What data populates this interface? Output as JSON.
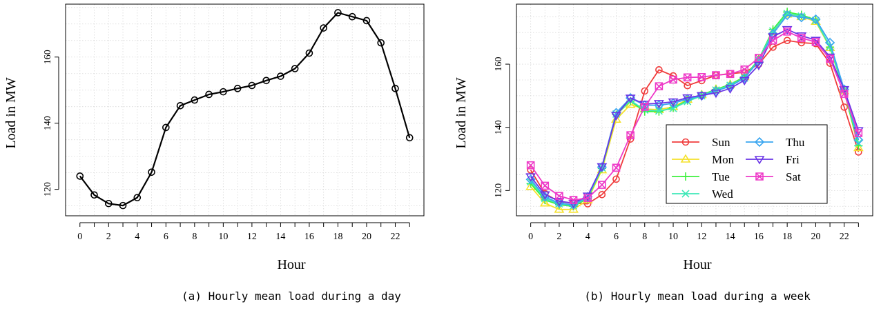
{
  "chart_data": [
    {
      "type": "line",
      "xlabel": "Hour",
      "ylabel": "Load in MW",
      "caption": "(a) Hourly mean load during a day",
      "xlim": [
        -1,
        24
      ],
      "ylim": [
        112,
        176
      ],
      "x_ticks": [
        0,
        2,
        4,
        6,
        8,
        10,
        12,
        14,
        16,
        18,
        20,
        22
      ],
      "y_ticks": [
        120,
        140,
        160
      ],
      "grid": true,
      "x": [
        0,
        1,
        2,
        3,
        4,
        5,
        6,
        7,
        8,
        9,
        10,
        11,
        12,
        13,
        14,
        15,
        16,
        17,
        18,
        19,
        20,
        21,
        22,
        23
      ],
      "series": [
        {
          "values": [
            124,
            118.3,
            115.7,
            115.1,
            117.5,
            125.2,
            138.7,
            145.3,
            147,
            148.7,
            149.5,
            150.5,
            151.4,
            152.9,
            154.2,
            156.5,
            161.2,
            168.8,
            173.4,
            172.2,
            171,
            164.3,
            150.5,
            135.6
          ],
          "color": "#000000",
          "marker": "circle"
        }
      ]
    },
    {
      "type": "line",
      "xlabel": "Hour",
      "ylabel": "Load in MW",
      "caption": "(b) Hourly mean load during a week",
      "xlim": [
        -1,
        24
      ],
      "ylim": [
        112,
        179
      ],
      "x_ticks": [
        0,
        2,
        4,
        6,
        8,
        10,
        12,
        14,
        16,
        18,
        20,
        22
      ],
      "y_ticks": [
        120,
        140,
        160
      ],
      "grid": true,
      "legend_position": "bottom-right",
      "x": [
        0,
        1,
        2,
        3,
        4,
        5,
        6,
        7,
        8,
        9,
        10,
        11,
        12,
        13,
        14,
        15,
        16,
        17,
        18,
        19,
        20,
        21,
        22,
        23
      ],
      "series": [
        {
          "name": "Sun",
          "color": "#f03c3c",
          "marker": "circle",
          "values": [
            126.5,
            119,
            116.5,
            116,
            115.8,
            118.7,
            123.6,
            136.3,
            151.5,
            158.2,
            156.3,
            153.2,
            154.8,
            156.5,
            157,
            157.4,
            160,
            165.4,
            167.5,
            166.8,
            166.5,
            160.3,
            146.4,
            132.2
          ]
        },
        {
          "name": "Mon",
          "color": "#f5e12a",
          "marker": "triangle-up",
          "values": [
            121.2,
            116,
            114,
            114,
            117,
            126.5,
            142.5,
            147.2,
            145.8,
            145.6,
            146.5,
            148.8,
            150.3,
            152,
            153.5,
            156,
            161.5,
            170.2,
            175.8,
            175,
            173.5,
            165.2,
            151.5,
            133.5
          ]
        },
        {
          "name": "Tue",
          "color": "#3ef03e",
          "marker": "plus",
          "values": [
            122.2,
            117,
            115.5,
            115,
            117.5,
            127,
            144,
            148.3,
            145,
            145,
            146.2,
            148.5,
            150.3,
            152,
            153.6,
            156,
            161.5,
            171,
            176.5,
            175.6,
            174,
            165.4,
            151.5,
            134.2
          ]
        },
        {
          "name": "Wed",
          "color": "#3ee8b8",
          "marker": "cross",
          "values": [
            122.8,
            117.5,
            115.8,
            115.2,
            117.8,
            127.2,
            144.2,
            148.5,
            145.5,
            145.2,
            146,
            148.2,
            150,
            151.8,
            153.3,
            155.6,
            161.3,
            170.5,
            176,
            175.2,
            173.8,
            165.6,
            151.8,
            135
          ]
        },
        {
          "name": "Thu",
          "color": "#3aa6f0",
          "marker": "diamond",
          "values": [
            123.5,
            118,
            116,
            115.5,
            118,
            127.4,
            144.6,
            149.3,
            147,
            147,
            147.6,
            149,
            150,
            151.5,
            153,
            155.6,
            161,
            169.6,
            175.5,
            174.8,
            174.2,
            166.8,
            152,
            136
          ]
        },
        {
          "name": "Fri",
          "color": "#6a35e6",
          "marker": "triangle-down",
          "values": [
            124.4,
            118.7,
            116.6,
            116,
            118.3,
            127.6,
            143.8,
            149.3,
            147.4,
            147.6,
            148.1,
            149.4,
            150.1,
            150.9,
            152.3,
            154.9,
            159.7,
            168.7,
            171,
            169,
            167.6,
            162.3,
            152,
            139
          ]
        },
        {
          "name": "Sat",
          "color": "#ee3ac8",
          "marker": "square-cross",
          "values": [
            128,
            121.5,
            118.3,
            117,
            117.6,
            121.8,
            127.2,
            137.5,
            146.5,
            153,
            155.1,
            155.8,
            155.9,
            156.5,
            156.9,
            158.3,
            162,
            167.5,
            170.3,
            168.3,
            167,
            161.7,
            150.6,
            138.2
          ]
        }
      ]
    }
  ]
}
